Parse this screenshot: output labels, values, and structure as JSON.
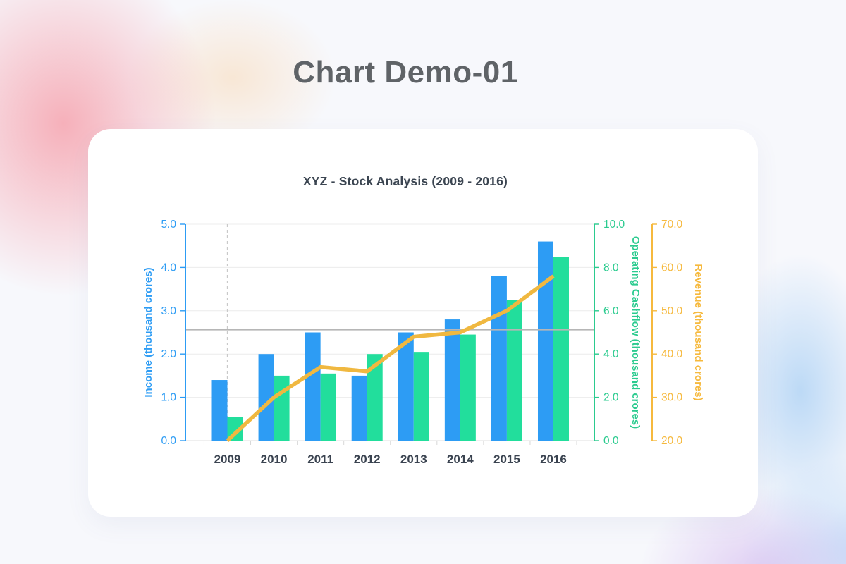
{
  "page": {
    "title": "Chart Demo-01"
  },
  "chart_data": {
    "type": "bar",
    "title": "XYZ - Stock Analysis (2009 - 2016)",
    "categories": [
      "2009",
      "2010",
      "2011",
      "2012",
      "2013",
      "2014",
      "2015",
      "2016"
    ],
    "series": [
      {
        "name": "Income",
        "type": "bar",
        "axis": "left",
        "color": "#2D9CF4",
        "values": [
          1.4,
          2.0,
          2.5,
          1.5,
          2.5,
          2.8,
          3.8,
          4.6
        ]
      },
      {
        "name": "Operating Cashflow",
        "type": "bar",
        "axis": "right1",
        "color": "#22DE9C",
        "values": [
          1.1,
          3.0,
          3.1,
          4.0,
          4.1,
          4.9,
          6.5,
          8.5
        ]
      },
      {
        "name": "Revenue",
        "type": "line",
        "axis": "right2",
        "color": "#F0B840",
        "values": [
          20,
          30,
          37,
          36,
          44,
          45,
          50,
          58
        ]
      }
    ],
    "axes": {
      "left": {
        "label": "Income (thousand crores)",
        "color": "#2D9CF4",
        "min": 0,
        "max": 5,
        "tick_labels": [
          "0.0",
          "1.0",
          "2.0",
          "3.0",
          "4.0",
          "5.0"
        ]
      },
      "right1": {
        "label": "Operating Cashflow (thousand crores)",
        "color": "#2BCB8F",
        "min": 0,
        "max": 10,
        "tick_labels": [
          "0.0",
          "2.0",
          "4.0",
          "6.0",
          "8.0",
          "10.0"
        ]
      },
      "right2": {
        "label": "Revenue (thousand crores)",
        "color": "#F6B93D",
        "min": 20,
        "max": 70,
        "tick_labels": [
          "20.0",
          "30.0",
          "40.0",
          "50.0",
          "60.0",
          "70.0"
        ]
      }
    },
    "annotations": {
      "reference_line_left_value": 2.56,
      "dashed_vline_category": "2009"
    },
    "grid": true,
    "legend_position": "none",
    "text_colors": {
      "category_label": "#3A4350"
    },
    "line_colors": {
      "grid": "#ECECEC",
      "x_axis": "#DFDFDF",
      "x_tick": "#D8D8D8",
      "reference": "#B6B6B6",
      "dashed": "#C9C9C9"
    }
  }
}
